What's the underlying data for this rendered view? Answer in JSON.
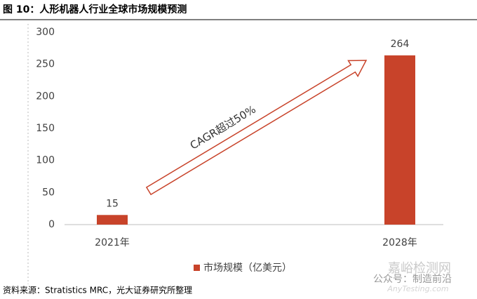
{
  "chart_data": {
    "type": "bar",
    "title": "图 10：人形机器人行业全球市场规模预测",
    "categories": [
      "2021年",
      "2028年"
    ],
    "series": [
      {
        "name": "市场规模（亿美元）",
        "color": "#c8432a",
        "values": [
          15,
          264
        ]
      }
    ],
    "ylim": [
      0,
      300
    ],
    "yticks": [
      0,
      50,
      100,
      150,
      200,
      250,
      300
    ],
    "grid": false,
    "legend": "bottom",
    "annotation": "CAGR超过50%",
    "source": "资料来源：Stratistics MRC，光大证券研究所整理",
    "watermark": [
      "嘉峪检测网",
      "公众号：制造前沿",
      "AnyTesting.com"
    ]
  }
}
